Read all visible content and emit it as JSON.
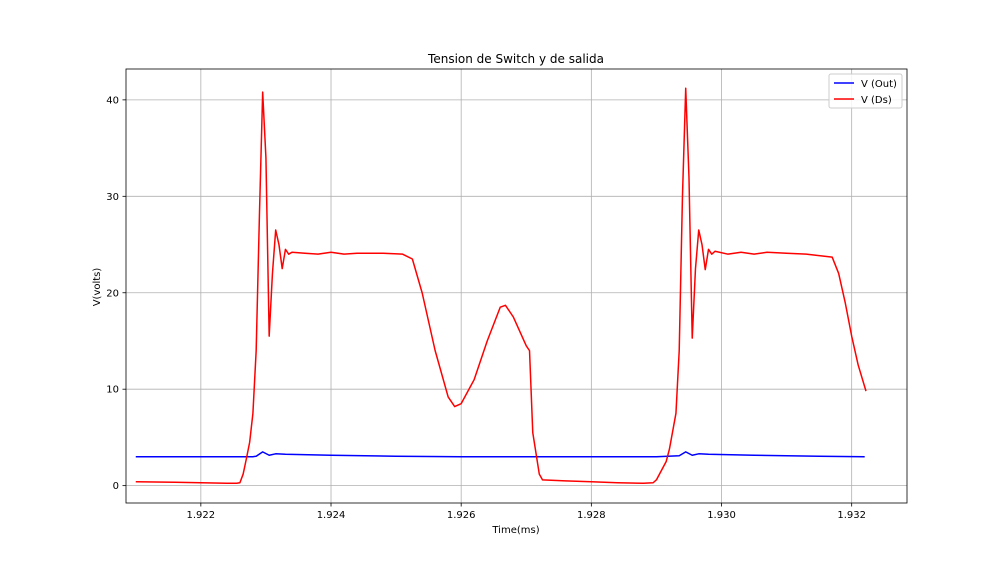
{
  "chart_data": {
    "type": "line",
    "title": "Tension de Switch y de salida",
    "xlabel": "Time(ms)",
    "ylabel": "V(volts)",
    "xlim": [
      1.92085,
      1.93285
    ],
    "ylim": [
      -1.8,
      43.2
    ],
    "grid": true,
    "legend_position": "top-right",
    "x_ticks": [
      1.922,
      1.924,
      1.926,
      1.928,
      1.93,
      1.932
    ],
    "x_tick_labels": [
      "1.922",
      "1.924",
      "1.926",
      "1.928",
      "1.930",
      "1.932"
    ],
    "y_ticks": [
      0,
      10,
      20,
      30,
      40
    ],
    "y_tick_labels": [
      "0",
      "10",
      "20",
      "30",
      "40"
    ],
    "series": [
      {
        "name": "V (Out)",
        "color": "#0000ff",
        "points": [
          [
            1.921,
            3.0
          ],
          [
            1.9225,
            3.0
          ],
          [
            1.9228,
            3.0
          ],
          [
            1.92285,
            3.05
          ],
          [
            1.92295,
            3.5
          ],
          [
            1.92305,
            3.15
          ],
          [
            1.92315,
            3.3
          ],
          [
            1.9233,
            3.25
          ],
          [
            1.924,
            3.15
          ],
          [
            1.925,
            3.05
          ],
          [
            1.926,
            3.0
          ],
          [
            1.928,
            3.0
          ],
          [
            1.929,
            3.0
          ],
          [
            1.92935,
            3.1
          ],
          [
            1.92945,
            3.5
          ],
          [
            1.92955,
            3.15
          ],
          [
            1.92965,
            3.3
          ],
          [
            1.9298,
            3.25
          ],
          [
            1.9305,
            3.15
          ],
          [
            1.9315,
            3.05
          ],
          [
            1.9322,
            3.0
          ]
        ]
      },
      {
        "name": "V (Ds)",
        "color": "#ff0000",
        "points": [
          [
            1.921,
            0.4
          ],
          [
            1.9216,
            0.35
          ],
          [
            1.922,
            0.3
          ],
          [
            1.9224,
            0.25
          ],
          [
            1.92255,
            0.25
          ],
          [
            1.9226,
            0.3
          ],
          [
            1.92265,
            1.2
          ],
          [
            1.9227,
            2.8
          ],
          [
            1.92275,
            4.5
          ],
          [
            1.9228,
            7.5
          ],
          [
            1.92285,
            14.0
          ],
          [
            1.9229,
            28.0
          ],
          [
            1.92295,
            40.8
          ],
          [
            1.923,
            34.0
          ],
          [
            1.92305,
            15.5
          ],
          [
            1.9231,
            22.0
          ],
          [
            1.92315,
            26.5
          ],
          [
            1.9232,
            25.0
          ],
          [
            1.92325,
            22.5
          ],
          [
            1.9233,
            24.5
          ],
          [
            1.92335,
            24.0
          ],
          [
            1.9234,
            24.2
          ],
          [
            1.9236,
            24.1
          ],
          [
            1.9238,
            24.0
          ],
          [
            1.924,
            24.2
          ],
          [
            1.9242,
            24.0
          ],
          [
            1.9244,
            24.1
          ],
          [
            1.9248,
            24.1
          ],
          [
            1.9251,
            24.0
          ],
          [
            1.92525,
            23.5
          ],
          [
            1.9254,
            20.0
          ],
          [
            1.9256,
            14.0
          ],
          [
            1.9258,
            9.2
          ],
          [
            1.9259,
            8.2
          ],
          [
            1.926,
            8.5
          ],
          [
            1.9262,
            11.0
          ],
          [
            1.9264,
            15.0
          ],
          [
            1.9266,
            18.5
          ],
          [
            1.92668,
            18.7
          ],
          [
            1.9268,
            17.5
          ],
          [
            1.927,
            14.5
          ],
          [
            1.92705,
            14.0
          ],
          [
            1.9271,
            5.5
          ],
          [
            1.9272,
            1.2
          ],
          [
            1.92725,
            0.6
          ],
          [
            1.9276,
            0.5
          ],
          [
            1.928,
            0.4
          ],
          [
            1.9284,
            0.3
          ],
          [
            1.9288,
            0.25
          ],
          [
            1.92895,
            0.3
          ],
          [
            1.929,
            0.6
          ],
          [
            1.92915,
            2.5
          ],
          [
            1.9292,
            3.8
          ],
          [
            1.9293,
            7.5
          ],
          [
            1.92935,
            14.0
          ],
          [
            1.9294,
            30.0
          ],
          [
            1.92945,
            41.2
          ],
          [
            1.9295,
            32.0
          ],
          [
            1.92955,
            15.3
          ],
          [
            1.9296,
            22.5
          ],
          [
            1.92965,
            26.5
          ],
          [
            1.9297,
            25.0
          ],
          [
            1.92975,
            22.4
          ],
          [
            1.9298,
            24.5
          ],
          [
            1.92985,
            24.0
          ],
          [
            1.9299,
            24.3
          ],
          [
            1.9301,
            24.0
          ],
          [
            1.9303,
            24.2
          ],
          [
            1.9305,
            24.0
          ],
          [
            1.9307,
            24.2
          ],
          [
            1.931,
            24.1
          ],
          [
            1.9313,
            24.0
          ],
          [
            1.9317,
            23.7
          ],
          [
            1.9318,
            22.0
          ],
          [
            1.9319,
            19.0
          ],
          [
            1.932,
            15.5
          ],
          [
            1.9321,
            12.5
          ],
          [
            1.93222,
            9.8
          ]
        ]
      }
    ]
  }
}
